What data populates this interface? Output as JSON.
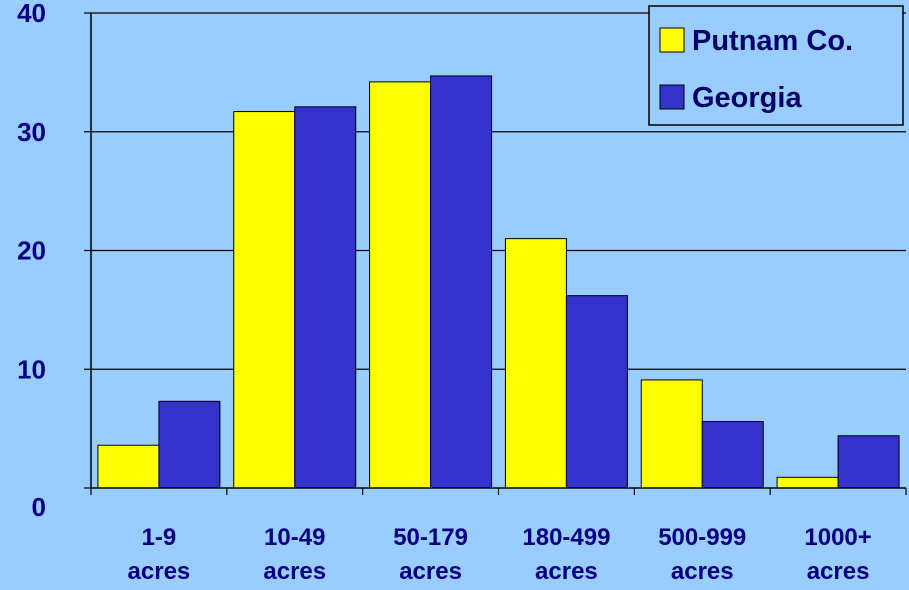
{
  "chart_data": {
    "type": "bar",
    "title": "",
    "xlabel": "",
    "ylabel": "",
    "categories": [
      [
        "1-9",
        "acres"
      ],
      [
        "10-49",
        "acres"
      ],
      [
        "50-179",
        "acres"
      ],
      [
        "180-499",
        "acres"
      ],
      [
        "500-999",
        "acres"
      ],
      [
        "1000+",
        "acres"
      ]
    ],
    "series": [
      {
        "name": "Putnam Co.",
        "color": "#ffff00",
        "values": [
          3.6,
          31.7,
          34.2,
          21.0,
          9.1,
          0.9
        ]
      },
      {
        "name": "Georgia",
        "color": "#3333cc",
        "values": [
          7.3,
          32.1,
          34.7,
          16.2,
          5.6,
          4.4
        ]
      }
    ],
    "ylim": [
      0,
      40
    ],
    "yticks": [
      0,
      10,
      20,
      30,
      40
    ],
    "grid": true,
    "legend": "top-right"
  }
}
